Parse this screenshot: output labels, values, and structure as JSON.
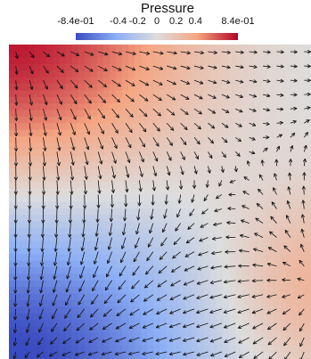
{
  "chart_data": {
    "type": "heatmap",
    "title": "Pressure",
    "colorbar": {
      "min": -0.84,
      "max": 0.84,
      "tick_labels": [
        "-8.4e-01",
        "-0.4",
        "-0.2",
        "0",
        "0.2",
        "0.4",
        "8.4e-01"
      ],
      "tick_values": [
        -0.84,
        -0.4,
        -0.2,
        0,
        0.2,
        0.4,
        0.84
      ],
      "colormap": [
        "#3b4cc0",
        "#8caff5",
        "#dddddd",
        "#f4a582",
        "#b40426"
      ]
    },
    "field": {
      "description_values": "scalar pressure field; high in top-left corner, low in bottom-left, mid-gray center",
      "corner_values": {
        "top_left": 0.84,
        "top_right": -0.3,
        "bottom_left": -0.84,
        "bottom_right": 0.35
      },
      "vector_overlay": "glyph arrows pointing from high to low pressure"
    },
    "grid": false,
    "legend": "top-center"
  }
}
